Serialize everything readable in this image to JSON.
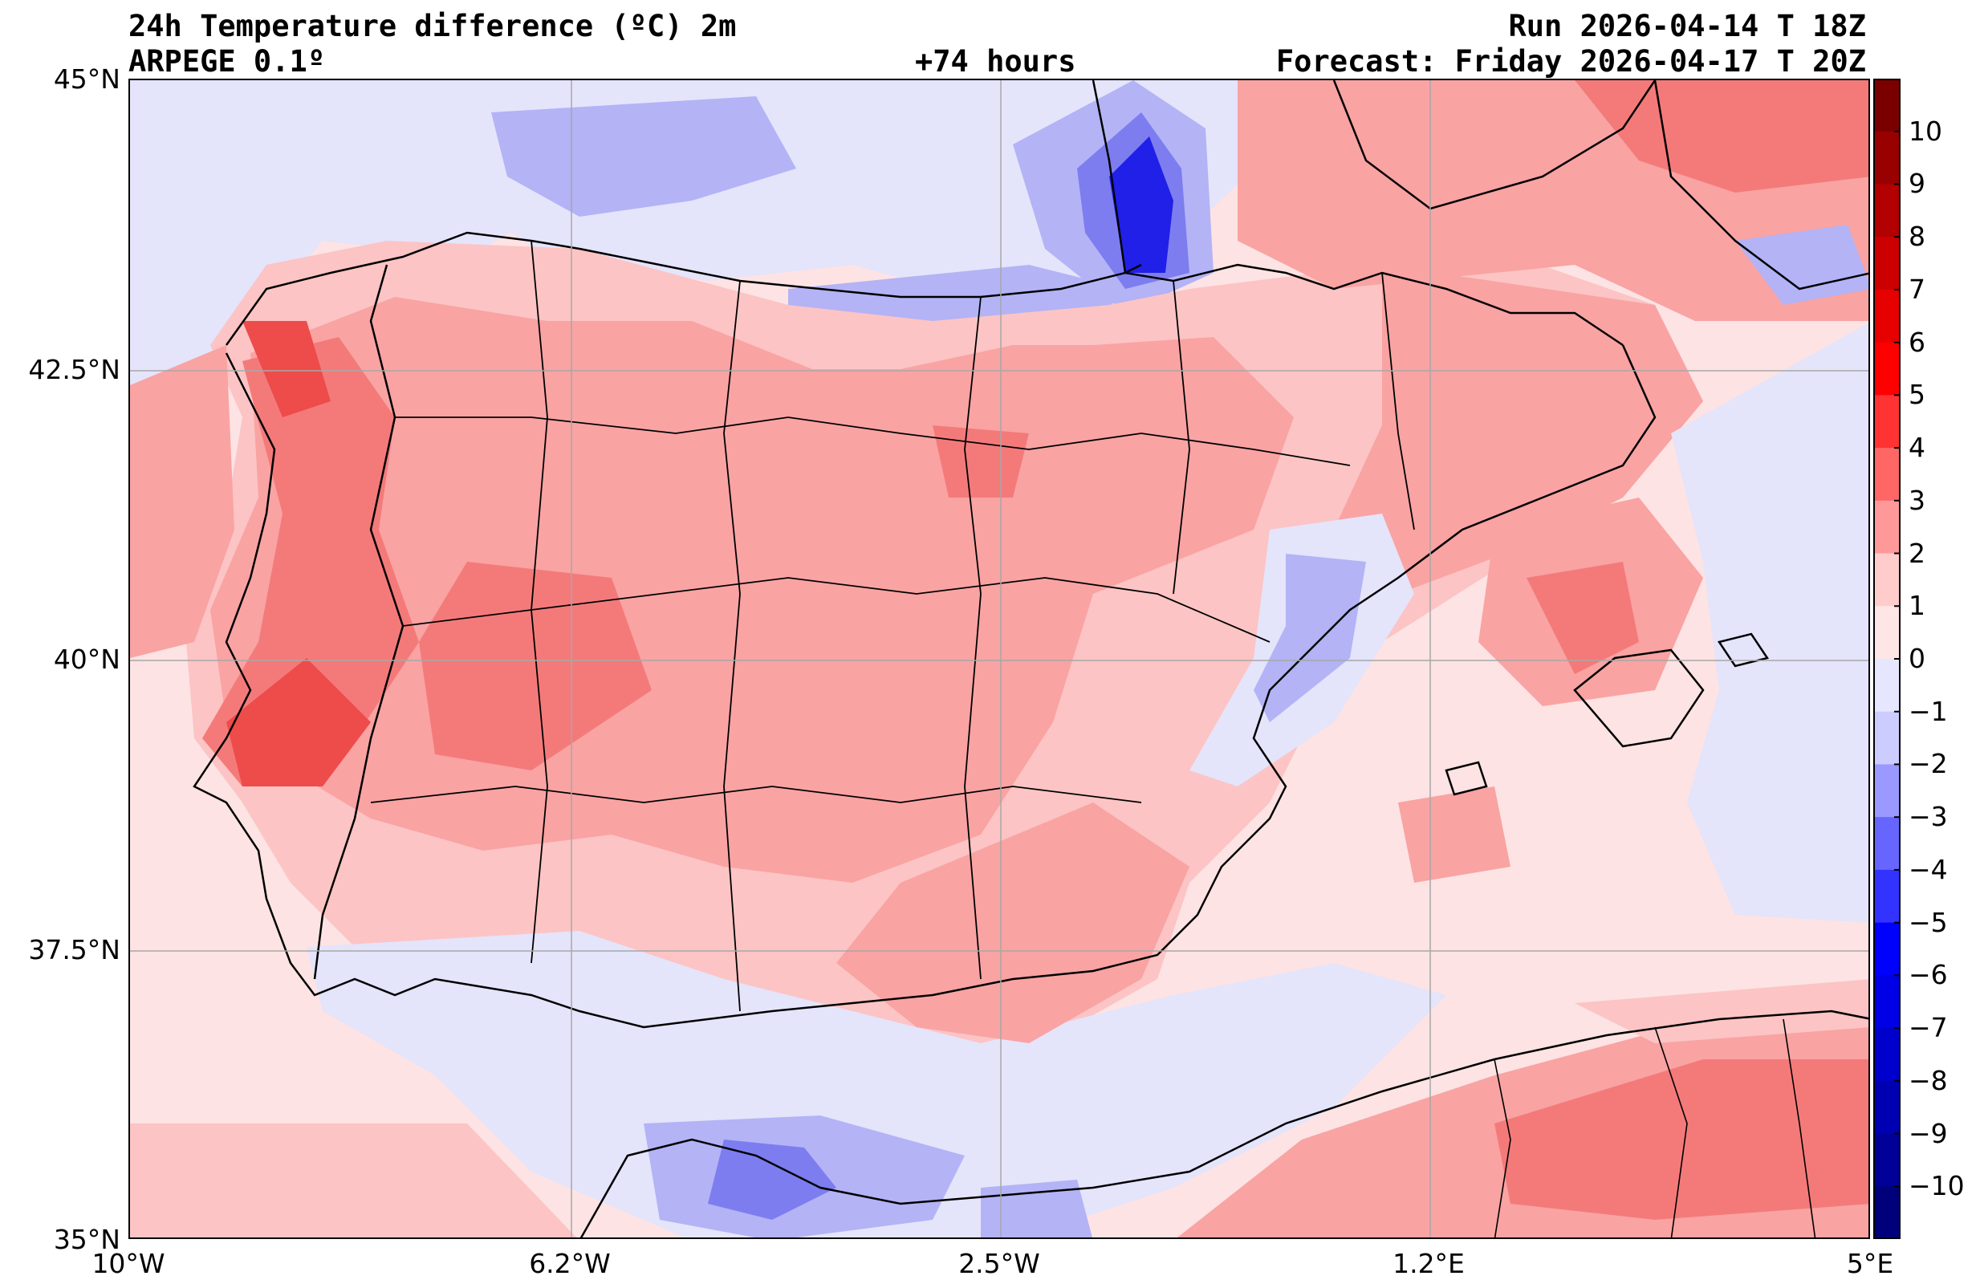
{
  "header": {
    "title": "24h Temperature difference (ºC) 2m",
    "model": "ARPEGE 0.1º",
    "lead_time": "+74 hours",
    "run": "Run 2026-04-14 T 18Z",
    "forecast": "Forecast: Friday 2026-04-17 T 20Z"
  },
  "axes": {
    "lat_labels": [
      "45°N",
      "42.5°N",
      "40°N",
      "37.5°N",
      "35°N"
    ],
    "lon_labels": [
      "10°W",
      "6.2°W",
      "2.5°W",
      "1.2°E",
      "5°E"
    ]
  },
  "colorbar": {
    "labels": [
      "10",
      "9",
      "8",
      "7",
      "6",
      "5",
      "4",
      "3",
      "2",
      "1",
      "0",
      "−1",
      "−2",
      "−3",
      "−4",
      "−5",
      "−6",
      "−7",
      "−8",
      "−9",
      "−10"
    ],
    "colors": [
      "#7a0000",
      "#990000",
      "#b30000",
      "#cc0000",
      "#e60000",
      "#ff0000",
      "#ff3333",
      "#ff6666",
      "#ff9999",
      "#ffcccc",
      "#ffe6e6",
      "#e6e6ff",
      "#ccccff",
      "#9999ff",
      "#6666ff",
      "#3333ff",
      "#0000ff",
      "#0000e6",
      "#0000cc",
      "#0000b3",
      "#000099",
      "#00007a"
    ]
  },
  "map": {
    "colors": {
      "neutral_pos": "#fde3e3",
      "plus1": "#fcc4c4",
      "plus2": "#f9a3a3",
      "plus3": "#f47a7a",
      "plus4": "#ee4b4b",
      "minus1": "#e4e4fb",
      "minus2": "#b3b3f6",
      "minus3": "#7d7df0",
      "minus5": "#2020e8",
      "border": "#000000",
      "grid": "#a8a8a8"
    }
  }
}
